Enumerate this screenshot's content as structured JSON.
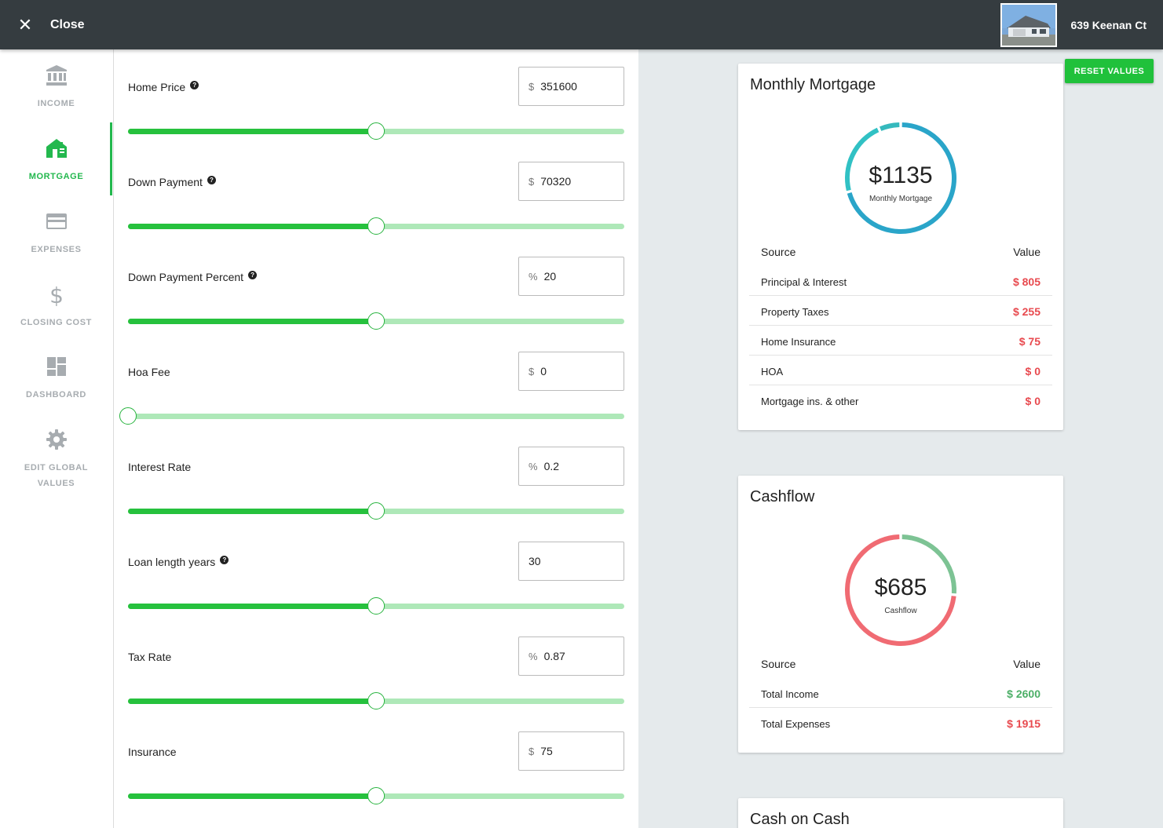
{
  "topbar": {
    "close_label": "Close",
    "address": "639 Keenan Ct"
  },
  "sidebar": {
    "items": [
      {
        "label": "INCOME",
        "icon": "bank-icon",
        "active": false
      },
      {
        "label": "MORTGAGE",
        "icon": "house-icon",
        "active": true
      },
      {
        "label": "EXPENSES",
        "icon": "credit-card-icon",
        "active": false
      },
      {
        "label": "CLOSING COST",
        "icon": "dollar-icon",
        "active": false
      },
      {
        "label": "DASHBOARD",
        "icon": "dashboard-icon",
        "active": false
      },
      {
        "label": "EDIT GLOBAL",
        "label2": "VALUES",
        "icon": "gear-icon",
        "active": false
      }
    ]
  },
  "form": {
    "fields": [
      {
        "label": "Home Price",
        "prefix": "$",
        "value": "351600",
        "help": true,
        "slider": 0.5
      },
      {
        "label": "Down Payment",
        "prefix": "$",
        "value": "70320",
        "help": true,
        "slider": 0.5
      },
      {
        "label": "Down Payment Percent",
        "prefix": "%",
        "value": "20",
        "help": true,
        "slider": 0.5
      },
      {
        "label": "Hoa Fee",
        "prefix": "$",
        "value": "0",
        "help": false,
        "slider": 0.0
      },
      {
        "label": "Interest Rate",
        "prefix": "%",
        "value": "0.2",
        "help": false,
        "slider": 0.5
      },
      {
        "label": "Loan length years",
        "prefix": "",
        "value": "30",
        "help": true,
        "slider": 0.5
      },
      {
        "label": "Tax Rate",
        "prefix": "%",
        "value": "0.87",
        "help": false,
        "slider": 0.5
      },
      {
        "label": "Insurance",
        "prefix": "$",
        "value": "75",
        "help": false,
        "slider": 0.5
      }
    ]
  },
  "reset_label": "RESET VALUES",
  "mortgage_card": {
    "title": "Monthly Mortgage",
    "total": "$1135",
    "subtitle": "Monthly Mortgage",
    "col_source": "Source",
    "col_value": "Value",
    "rows": [
      {
        "source": "Principal & Interest",
        "value": "$ 805",
        "amount": 805
      },
      {
        "source": "Property Taxes",
        "value": "$ 255",
        "amount": 255
      },
      {
        "source": "Home Insurance",
        "value": "$ 75",
        "amount": 75
      },
      {
        "source": "HOA",
        "value": "$ 0",
        "amount": 0
      },
      {
        "source": "Mortgage ins. & other",
        "value": "$ 0",
        "amount": 0
      }
    ],
    "colors": [
      "#2aa5c9",
      "#31c1c4",
      "#35b9bd"
    ]
  },
  "cashflow_card": {
    "title": "Cashflow",
    "total": "$685",
    "subtitle": "Cashflow",
    "col_source": "Source",
    "col_value": "Value",
    "rows": [
      {
        "source": "Total Income",
        "value": "$ 2600",
        "amount": 2600,
        "tone": "pos"
      },
      {
        "source": "Total Expenses",
        "value": "$ 1915",
        "amount": 1915,
        "tone": "neg"
      }
    ],
    "colors": [
      "#7dc394",
      "#f06b73"
    ]
  },
  "coc_card": {
    "title": "Cash on Cash"
  }
}
